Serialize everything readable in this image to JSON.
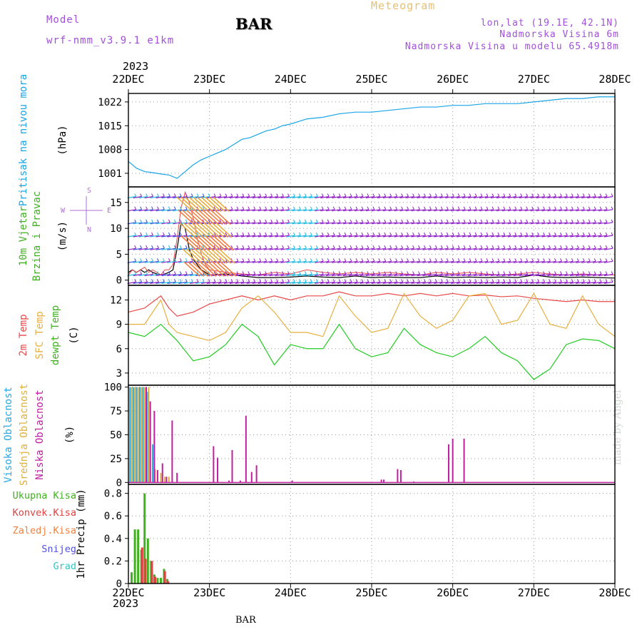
{
  "header": {
    "model_label": "Model",
    "model_run": "wrf-nmm_v3.9.1  e1km",
    "station": "BAR",
    "product": "Meteogram",
    "location": "lon,lat (19.1E, 42.1N)",
    "altitude": "Nadmorska Visina 6m",
    "model_altitude": "Nadmorska Visina u modelu 65.4918m",
    "year_top": "2023",
    "year_bottom": "2023"
  },
  "footer": {
    "station": "BAR",
    "credit": "made by Angel"
  },
  "dates": [
    "22DEC",
    "23DEC",
    "24DEC",
    "25DEC",
    "26DEC",
    "27DEC",
    "28DEC"
  ],
  "colors": {
    "pressure": "#1aa5e6",
    "temp2m": "#e84848",
    "sfc": "#e6b040",
    "dewpt": "#22cc22",
    "high_cloud": "#2aa8e0",
    "mid_cloud": "#e0b040",
    "low_cloud": "#c020a0",
    "total_precip": "#40b020",
    "conv_precip": "#e04040",
    "frozen_precip": "#f08040",
    "snow": "#5050e0",
    "hail": "#30c8c8",
    "wind_violet": "#9020c8",
    "wind_blue": "#3050e0",
    "wind_cyan": "#20b8e0"
  },
  "chart_data": [
    {
      "type": "line",
      "panel": "pressure",
      "ylabel_lines": [
        "Pritisak na nivou mora"
      ],
      "unit": "(hPa)",
      "yticks": [
        1001,
        1008,
        1015,
        1022
      ],
      "ylim": [
        997,
        1024.5
      ],
      "grid": true,
      "x_days": [
        0,
        0.1,
        0.2,
        0.3,
        0.4,
        0.5,
        0.6,
        0.7,
        0.8,
        0.9,
        1.0,
        1.1,
        1.2,
        1.3,
        1.4,
        1.5,
        1.6,
        1.7,
        1.8,
        1.9,
        2.0,
        2.2,
        2.4,
        2.6,
        2.8,
        3.0,
        3.2,
        3.4,
        3.6,
        3.8,
        4.0,
        4.2,
        4.4,
        4.6,
        4.8,
        5.0,
        5.2,
        5.4,
        5.6,
        5.8,
        6.0
      ],
      "series": [
        {
          "key": "pressure",
          "values": [
            1004.5,
            1002.5,
            1001.5,
            1001.2,
            1000.8,
            1000.5,
            999.5,
            1001.5,
            1003.5,
            1005,
            1006,
            1007,
            1008,
            1009.5,
            1011,
            1011.5,
            1012.5,
            1013.5,
            1014,
            1015,
            1015.5,
            1017,
            1017.5,
            1018.5,
            1019,
            1019,
            1019.5,
            1020,
            1020.5,
            1020.5,
            1021,
            1021,
            1021.5,
            1021.5,
            1021.5,
            1022,
            1022.5,
            1023,
            1023,
            1023.5,
            1023.5
          ]
        }
      ]
    },
    {
      "type": "line",
      "panel": "wind",
      "ylabel_lines": [
        "10m Vjetar",
        "Brzina i Pravac"
      ],
      "unit": "(m/s)",
      "yticks": [
        0,
        5,
        10,
        15
      ],
      "ylim": [
        -1,
        18
      ],
      "grid": true,
      "compass": [
        "S",
        "W",
        "E",
        "N"
      ],
      "x_days": [
        0,
        0.05,
        0.1,
        0.15,
        0.2,
        0.25,
        0.3,
        0.35,
        0.4,
        0.45,
        0.5,
        0.55,
        0.6,
        0.65,
        0.7,
        0.75,
        0.8,
        0.85,
        0.9,
        0.95,
        1.0,
        1.2,
        1.4,
        1.6,
        1.8,
        2.0,
        2.2,
        2.4,
        2.6,
        2.8,
        3.0,
        3.2,
        3.4,
        3.6,
        3.8,
        4.0,
        4.2,
        4.4,
        4.6,
        4.8,
        5.0,
        5.2,
        5.4,
        5.6,
        5.8,
        6.0
      ],
      "series": [
        {
          "key": "wind_speed",
          "values": [
            1.5,
            2,
            1.5,
            2,
            1.5,
            2,
            1.5,
            1.2,
            1,
            1.2,
            1.5,
            2,
            6,
            11,
            10,
            6,
            4,
            3,
            2,
            1.5,
            1,
            1.2,
            0.8,
            0.5,
            0.5,
            0.6,
            0.8,
            0.6,
            0.5,
            0.8,
            0.5,
            0.6,
            0.5,
            0.5,
            0.8,
            0.5,
            0.6,
            0.5,
            0.6,
            0.5,
            1,
            0.6,
            0.5,
            0.6,
            0.5,
            0.4
          ]
        },
        {
          "key": "wind_gust",
          "values": [
            1,
            2,
            1.5,
            2,
            2.5,
            1.5,
            2,
            1.5,
            1,
            2,
            2,
            3,
            8,
            14,
            17,
            15,
            12,
            8,
            5,
            3,
            2,
            1.5,
            1.2,
            1,
            1.5,
            1.2,
            2,
            1.5,
            1.2,
            1.5,
            1.2,
            1.5,
            1.2,
            1,
            1.5,
            1.2,
            1.5,
            1.2,
            1,
            1.2,
            1.5,
            1.2,
            1,
            1.2,
            1,
            1
          ]
        }
      ]
    },
    {
      "type": "line",
      "panel": "temperature",
      "ylabel_lines": [
        "2m Temp",
        "SFC Temp",
        "dewpt Temp"
      ],
      "unit": "(C)",
      "yticks": [
        3,
        6,
        9,
        12
      ],
      "ylim": [
        1.5,
        13.8
      ],
      "grid": true,
      "x_days": [
        0,
        0.2,
        0.4,
        0.5,
        0.6,
        0.8,
        1.0,
        1.2,
        1.4,
        1.6,
        1.8,
        2.0,
        2.2,
        2.4,
        2.6,
        2.8,
        3.0,
        3.2,
        3.4,
        3.6,
        3.8,
        4.0,
        4.2,
        4.4,
        4.6,
        4.8,
        5.0,
        5.2,
        5.4,
        5.6,
        5.8,
        6.0
      ],
      "series": [
        {
          "key": "temp2m",
          "values": [
            10.5,
            11,
            12.5,
            11,
            10,
            10.5,
            11.5,
            12,
            12.5,
            12,
            12.5,
            12,
            12.5,
            12.5,
            13,
            12.5,
            12.5,
            12.8,
            12.5,
            12.8,
            12.5,
            12.8,
            12.5,
            12.6,
            12.4,
            12.5,
            12.2,
            12,
            11.8,
            12,
            11.8,
            11.8
          ]
        },
        {
          "key": "sfc",
          "values": [
            9,
            9,
            12,
            9,
            8,
            7.5,
            7,
            8,
            11,
            12.5,
            10.5,
            8,
            8,
            7.5,
            12.5,
            10,
            8,
            8.5,
            12.8,
            10,
            8.5,
            9.5,
            12.5,
            12.8,
            9,
            9.5,
            12.8,
            9,
            8.5,
            12.5,
            9,
            7.5
          ]
        },
        {
          "key": "dewpt",
          "values": [
            8,
            7.5,
            9,
            8,
            7,
            4.5,
            5,
            6.5,
            9,
            7.5,
            4,
            6.5,
            6,
            6,
            9,
            6,
            5,
            5.5,
            8.5,
            6.5,
            5.5,
            5,
            6,
            7.5,
            5.5,
            4.5,
            2.2,
            3.5,
            6.5,
            7.2,
            7,
            6
          ]
        }
      ]
    },
    {
      "type": "bar",
      "panel": "cloud",
      "ylabel_lines": [
        "Visoka Oblacnost",
        "Srednja Oblacnost",
        "Niska Oblacnost"
      ],
      "unit": "(%)",
      "yticks": [
        0,
        25,
        50,
        75,
        100
      ],
      "ylim": [
        -2,
        102
      ],
      "grid": true,
      "series": [
        {
          "key": "high_cloud",
          "points": [
            [
              0.02,
              100
            ],
            [
              0.06,
              100
            ],
            [
              0.1,
              100
            ],
            [
              0.14,
              100
            ],
            [
              0.18,
              100
            ],
            [
              0.24,
              95
            ],
            [
              0.3,
              40
            ]
          ]
        },
        {
          "key": "mid_cloud",
          "points": [
            [
              0.04,
              100
            ],
            [
              0.08,
              100
            ],
            [
              0.12,
              100
            ],
            [
              0.16,
              100
            ],
            [
              0.2,
              100
            ],
            [
              0.25,
              100
            ],
            [
              0.33,
              14
            ],
            [
              0.4,
              10
            ],
            [
              0.45,
              6
            ],
            [
              0.5,
              6
            ]
          ]
        },
        {
          "key": "low_cloud",
          "points": [
            [
              0.22,
              100
            ],
            [
              0.27,
              85
            ],
            [
              0.32,
              75
            ],
            [
              0.36,
              13
            ],
            [
              0.42,
              20
            ],
            [
              0.47,
              6
            ],
            [
              0.54,
              65
            ],
            [
              0.6,
              10
            ],
            [
              1.05,
              38
            ],
            [
              1.1,
              26
            ],
            [
              1.24,
              2
            ],
            [
              1.28,
              34
            ],
            [
              1.38,
              2
            ],
            [
              1.45,
              70
            ],
            [
              1.52,
              11
            ],
            [
              1.58,
              18
            ],
            [
              2.02,
              2
            ],
            [
              3.12,
              3
            ],
            [
              3.15,
              3
            ],
            [
              3.32,
              14
            ],
            [
              3.36,
              13
            ],
            [
              3.52,
              1
            ],
            [
              3.95,
              40
            ],
            [
              4.0,
              46
            ],
            [
              4.14,
              46
            ]
          ]
        }
      ]
    },
    {
      "type": "bar",
      "panel": "precip",
      "ylabel_lines": [
        "1hr Precip (mm)"
      ],
      "unit": "",
      "legend": [
        "Ukupna Kisa",
        "Konvek.Kisa",
        "Zaledj.Kisa",
        "Snijeg",
        "Grad"
      ],
      "yticks": [
        0,
        0.2,
        0.4,
        0.6,
        0.8
      ],
      "ylim": [
        0,
        0.88
      ],
      "grid": true,
      "series": [
        {
          "key": "total_precip",
          "points": [
            [
              0.04,
              0.1
            ],
            [
              0.08,
              0.48
            ],
            [
              0.12,
              0.48
            ],
            [
              0.16,
              0.3
            ],
            [
              0.2,
              0.8
            ],
            [
              0.24,
              0.4
            ],
            [
              0.28,
              0.2
            ],
            [
              0.32,
              0.08
            ],
            [
              0.36,
              0.05
            ],
            [
              0.4,
              0.05
            ],
            [
              0.44,
              0.13
            ],
            [
              0.48,
              0.04
            ]
          ]
        },
        {
          "key": "conv_precip",
          "points": [
            [
              0.17,
              0.32
            ],
            [
              0.21,
              0.22
            ],
            [
              0.29,
              0.2
            ],
            [
              0.33,
              0.06
            ],
            [
              0.45,
              0.11
            ],
            [
              0.49,
              0.02
            ]
          ]
        }
      ]
    }
  ]
}
